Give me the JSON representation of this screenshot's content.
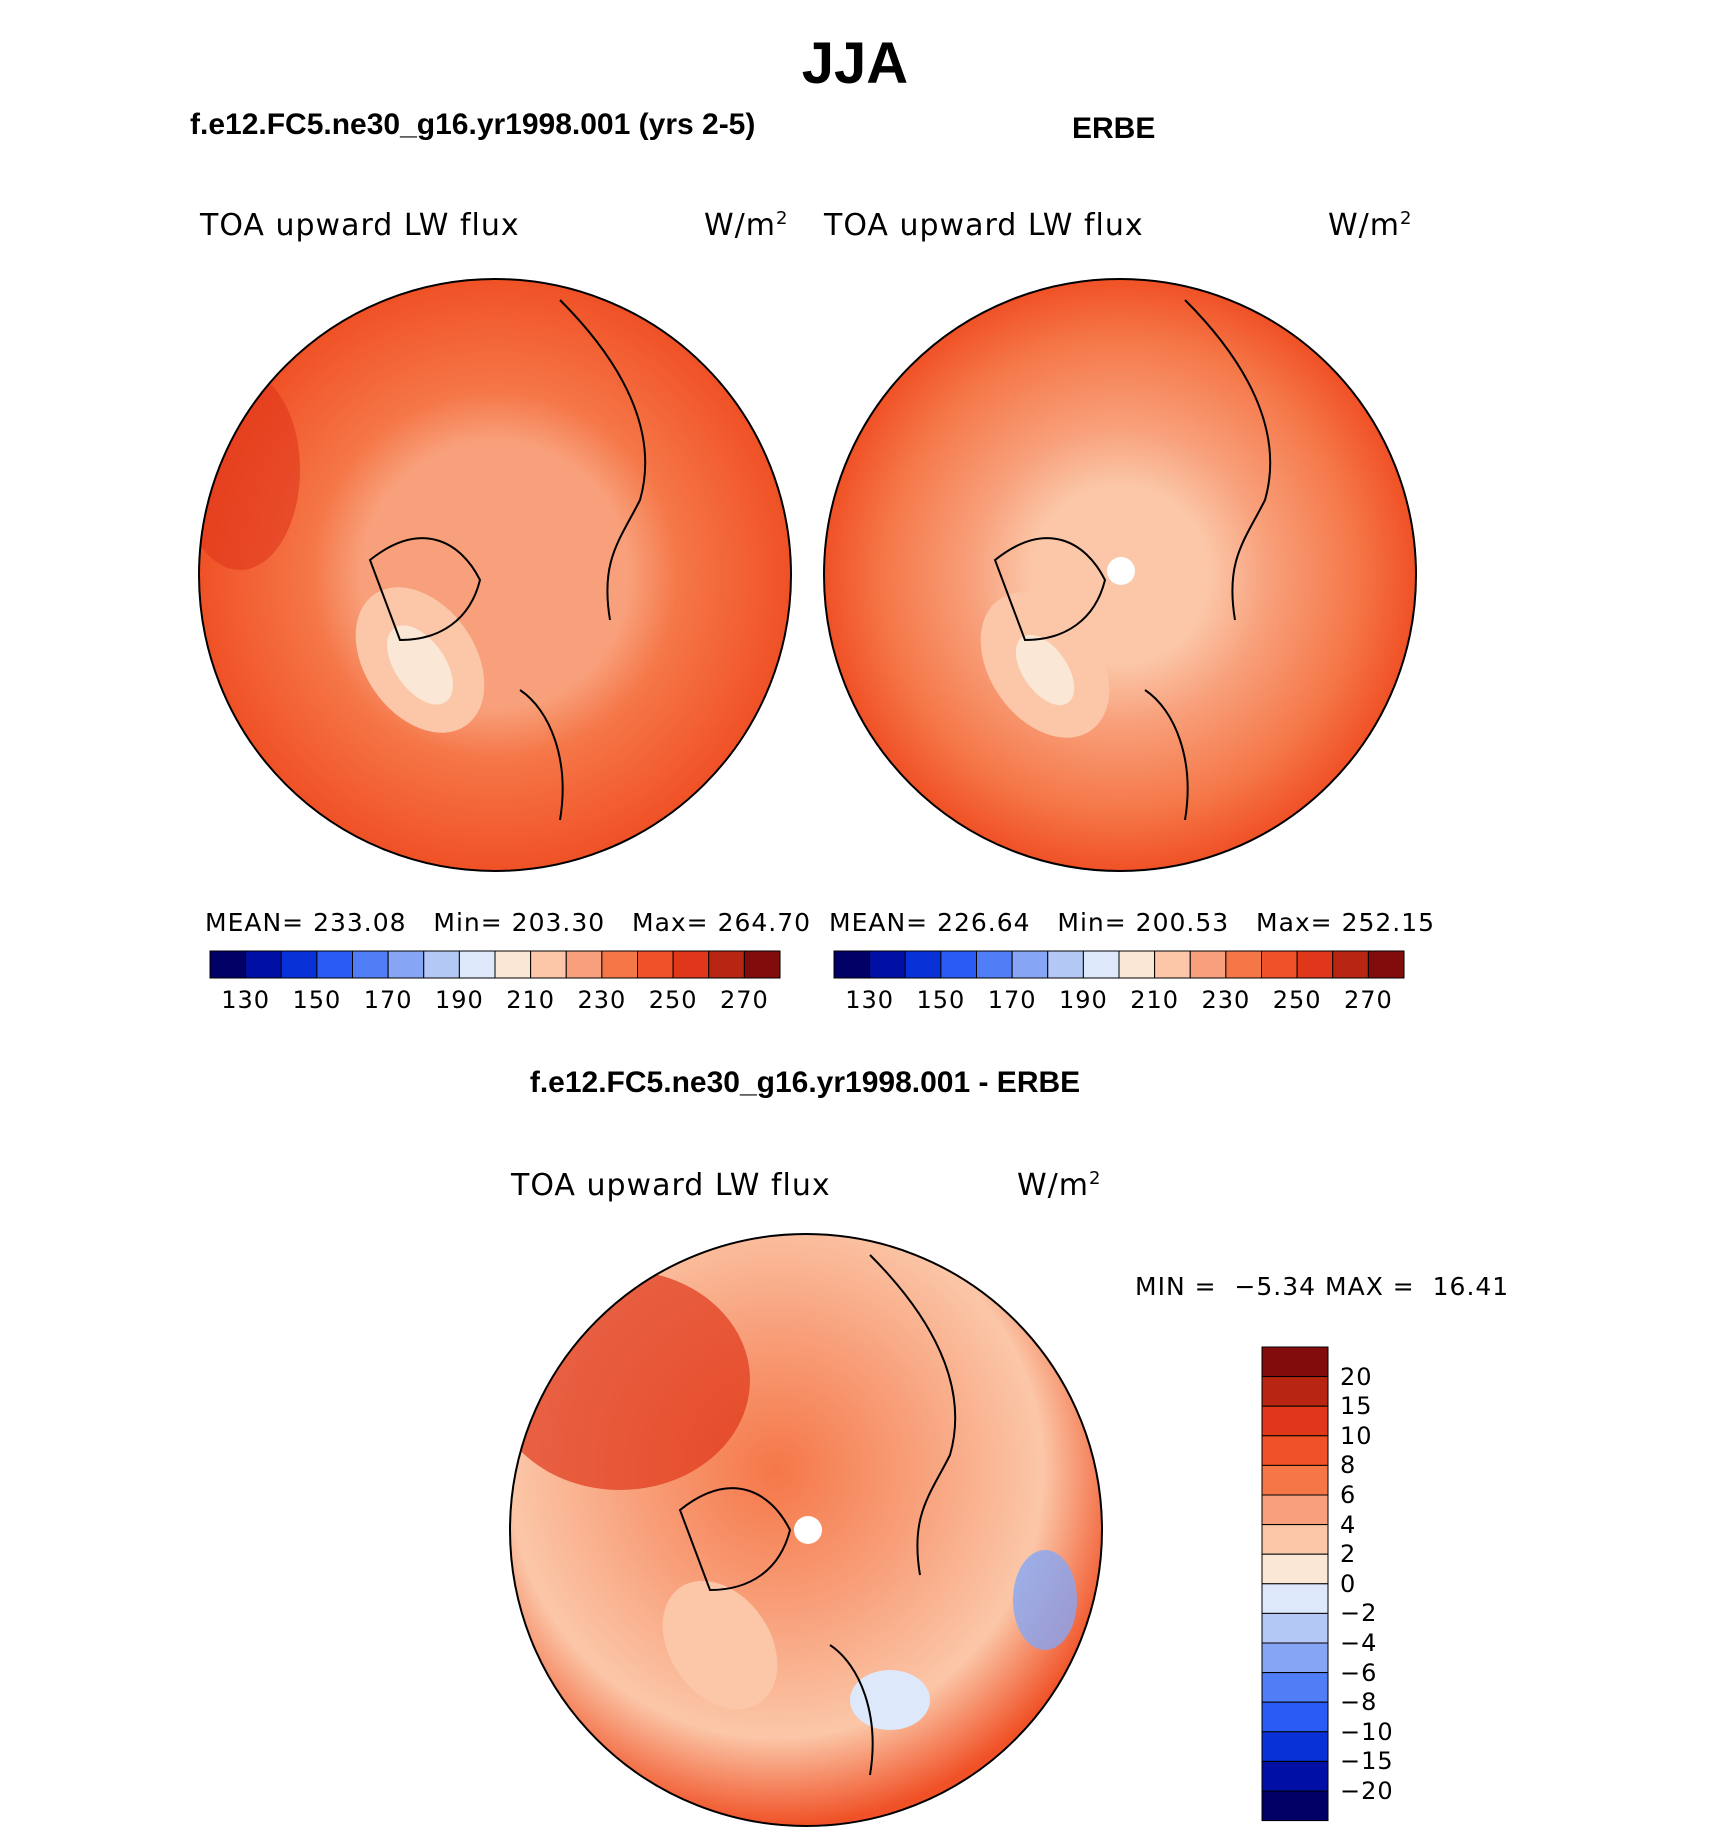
{
  "page": {
    "season_title": "JJA",
    "left_panel_title": "f.e12.FC5.ne30_g16.yr1998.001 (yrs 2-5)",
    "right_panel_title": "ERBE",
    "diff_panel_title": "f.e12.FC5.ne30_g16.yr1998.001 - ERBE"
  },
  "chart_data": [
    {
      "type": "heatmap",
      "projection": "north polar stereographic",
      "title": "f.e12.FC5.ne30_g16.yr1998.001 (yrs 2-5)",
      "variable_label": "TOA upward LW flux",
      "units": "W/m",
      "units_exp": "2",
      "stats": {
        "mean_label": "MEAN=",
        "mean": "233.08",
        "min_label": "Min=",
        "min": "203.30",
        "max_label": "Max=",
        "max": "264.70"
      },
      "colorbar": {
        "tick_labels": [
          "130",
          "150",
          "170",
          "190",
          "210",
          "230",
          "250",
          "270"
        ],
        "colors": [
          "#000066",
          "#0010a5",
          "#0832d8",
          "#2a5bf4",
          "#4f7ef7",
          "#86a6f5",
          "#b4c8f5",
          "#dde8fa",
          "#fbe7d5",
          "#fbc7a8",
          "#f8a07b",
          "#f57748",
          "#f05126",
          "#e0361a",
          "#b82613",
          "#820b0b"
        ]
      },
      "description": "Upward longwave flux over the Arctic; ~210-230 near the pole and Greenland, 240-260 at lower latitudes."
    },
    {
      "type": "heatmap",
      "projection": "north polar stereographic",
      "title": "ERBE",
      "variable_label": "TOA upward LW flux",
      "units": "W/m",
      "units_exp": "2",
      "stats": {
        "mean_label": "MEAN=",
        "mean": "226.64",
        "min_label": "Min=",
        "min": "200.53",
        "max_label": "Max=",
        "max": "252.15"
      },
      "colorbar": {
        "tick_labels": [
          "130",
          "150",
          "170",
          "190",
          "210",
          "230",
          "250",
          "270"
        ],
        "colors": [
          "#000066",
          "#0010a5",
          "#0832d8",
          "#2a5bf4",
          "#4f7ef7",
          "#86a6f5",
          "#b4c8f5",
          "#dde8fa",
          "#fbe7d5",
          "#fbc7a8",
          "#f8a07b",
          "#f57748",
          "#f05126",
          "#e0361a",
          "#b82613",
          "#820b0b"
        ]
      }
    },
    {
      "type": "heatmap",
      "projection": "north polar stereographic",
      "title": "f.e12.FC5.ne30_g16.yr1998.001 - ERBE",
      "variable_label": "TOA upward LW flux",
      "units": "W/m",
      "units_exp": "2",
      "stats": {
        "min_label": "MIN =",
        "min": "−5.34",
        "max_label": "MAX =",
        "max": "16.41"
      },
      "colorbar": {
        "orientation": "vertical",
        "tick_labels": [
          "20",
          "15",
          "10",
          "8",
          "6",
          "4",
          "2",
          "0",
          "−2",
          "−4",
          "−6",
          "−8",
          "−10",
          "−15",
          "−20"
        ],
        "colors": [
          "#820b0b",
          "#b82613",
          "#e0361a",
          "#f05126",
          "#f57748",
          "#f8a07b",
          "#fbc7a8",
          "#fbe7d5",
          "#dde8fa",
          "#b4c8f5",
          "#86a6f5",
          "#4f7ef7",
          "#2a5bf4",
          "#0832d8",
          "#0010a5",
          "#000066"
        ]
      }
    }
  ]
}
